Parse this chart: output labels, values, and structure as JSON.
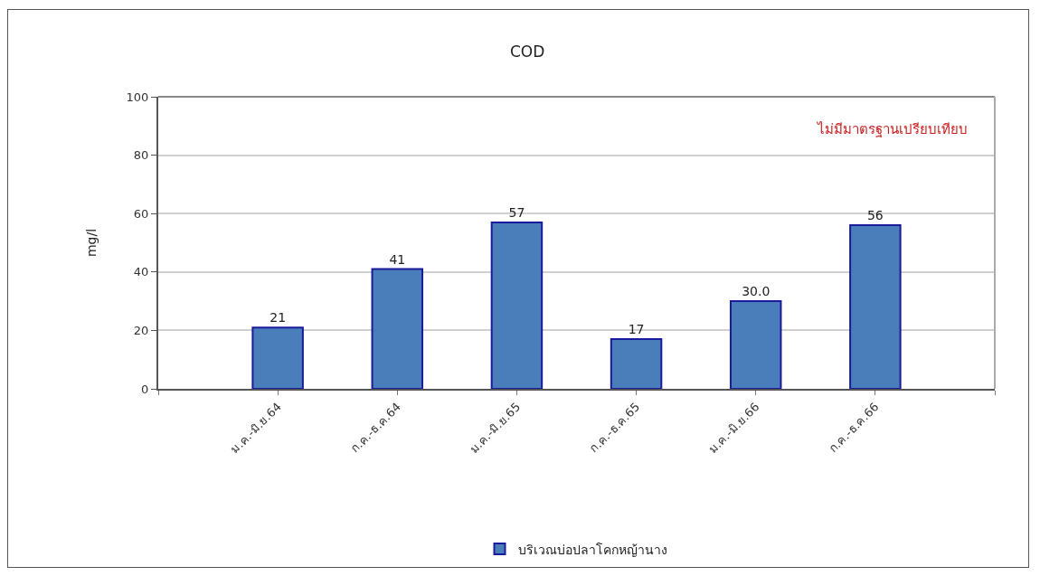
{
  "chart_data": {
    "type": "bar",
    "title": "COD",
    "ylabel": "mg/l",
    "categories": [
      null,
      "ม.ค.-มิ.ย.64",
      "ก.ค.-ธ.ค.64",
      "ม.ค.-มิ.ย.65",
      "ก.ค.-ธ.ค.65",
      "ม.ค.-มิ.ย.66",
      "ก.ค.-ธ.ค.66",
      null
    ],
    "series": [
      {
        "name": "บริเวณบ่อปลาโคกหญ้านาง",
        "color": "#4a7ebb",
        "values": [
          null,
          21,
          41,
          57,
          17,
          30,
          56,
          null
        ],
        "value_labels": [
          null,
          "21",
          "41",
          "57",
          "17",
          "30.0",
          "56",
          null
        ]
      }
    ],
    "annotations": [
      "ไม่มีมาตรฐานเปรียบเทียบ"
    ],
    "ylim": [
      0,
      100
    ],
    "yticks": [
      0,
      20,
      40,
      60,
      80,
      100
    ],
    "grid": "y",
    "legend": "bottom"
  }
}
